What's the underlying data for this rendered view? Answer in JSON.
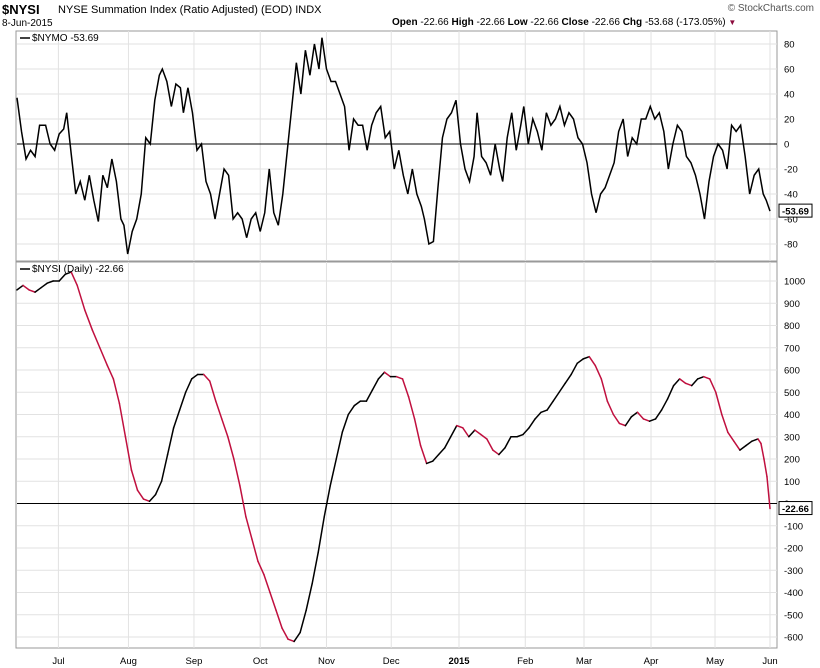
{
  "header": {
    "symbol": "$NYSI",
    "title": "NYSE Summation Index (Ratio Adjusted) (EOD)",
    "exchange": "INDX",
    "date": "8-Jun-2015",
    "open_label": "Open",
    "open_value": "-22.66",
    "high_label": "High",
    "high_value": "-22.66",
    "low_label": "Low",
    "low_value": "-22.66",
    "close_label": "Close",
    "close_value": "-22.66",
    "chg_label": "Chg",
    "chg_value": "-53.68 (-173.05%)",
    "watermark": "© StockCharts.com"
  },
  "colors": {
    "up": "#000000",
    "down": "#c0103f",
    "zero_line": "#000000",
    "grid": "#e2e2e2",
    "chg_arrow": "#8b0a3c"
  },
  "chart_data": [
    {
      "type": "line",
      "legend": "$NYMO -53.69",
      "series_name": "$NYMO",
      "last_value": -53.69,
      "last_label": "-53.69",
      "y_range": [
        -90,
        90
      ],
      "y_ticks": [
        80,
        60,
        40,
        20,
        0,
        -20,
        -40,
        -60,
        -80
      ],
      "zero_line": 0,
      "x_ticks": [
        {
          "label": "Jul",
          "t": 0.055
        },
        {
          "label": "Aug",
          "t": 0.148
        },
        {
          "label": "Sep",
          "t": 0.235
        },
        {
          "label": "Oct",
          "t": 0.323
        },
        {
          "label": "Nov",
          "t": 0.411
        },
        {
          "label": "Dec",
          "t": 0.497
        },
        {
          "label": "2015",
          "t": 0.587
        },
        {
          "label": "Feb",
          "t": 0.675
        },
        {
          "label": "Mar",
          "t": 0.753
        },
        {
          "label": "Apr",
          "t": 0.842
        },
        {
          "label": "May",
          "t": 0.927
        },
        {
          "label": "Jun",
          "t": 1.0
        }
      ],
      "points": [
        [
          0.0,
          37
        ],
        [
          0.006,
          10
        ],
        [
          0.012,
          -12
        ],
        [
          0.018,
          -5
        ],
        [
          0.024,
          -10
        ],
        [
          0.03,
          15
        ],
        [
          0.038,
          15
        ],
        [
          0.044,
          0
        ],
        [
          0.05,
          -5
        ],
        [
          0.056,
          8
        ],
        [
          0.062,
          12
        ],
        [
          0.066,
          25
        ],
        [
          0.072,
          -8
        ],
        [
          0.078,
          -40
        ],
        [
          0.084,
          -30
        ],
        [
          0.09,
          -45
        ],
        [
          0.096,
          -25
        ],
        [
          0.102,
          -45
        ],
        [
          0.108,
          -62
        ],
        [
          0.114,
          -25
        ],
        [
          0.12,
          -35
        ],
        [
          0.126,
          -12
        ],
        [
          0.132,
          -30
        ],
        [
          0.138,
          -60
        ],
        [
          0.142,
          -65
        ],
        [
          0.147,
          -88
        ],
        [
          0.153,
          -70
        ],
        [
          0.159,
          -60
        ],
        [
          0.165,
          -40
        ],
        [
          0.171,
          5
        ],
        [
          0.177,
          0
        ],
        [
          0.183,
          35
        ],
        [
          0.189,
          55
        ],
        [
          0.193,
          60
        ],
        [
          0.199,
          50
        ],
        [
          0.205,
          30
        ],
        [
          0.211,
          48
        ],
        [
          0.217,
          45
        ],
        [
          0.221,
          25
        ],
        [
          0.227,
          45
        ],
        [
          0.233,
          25
        ],
        [
          0.239,
          -5
        ],
        [
          0.245,
          0
        ],
        [
          0.251,
          -30
        ],
        [
          0.257,
          -40
        ],
        [
          0.263,
          -60
        ],
        [
          0.269,
          -40
        ],
        [
          0.275,
          -20
        ],
        [
          0.281,
          -25
        ],
        [
          0.287,
          -60
        ],
        [
          0.293,
          -55
        ],
        [
          0.299,
          -60
        ],
        [
          0.305,
          -75
        ],
        [
          0.311,
          -60
        ],
        [
          0.317,
          -55
        ],
        [
          0.323,
          -70
        ],
        [
          0.329,
          -55
        ],
        [
          0.335,
          -20
        ],
        [
          0.341,
          -55
        ],
        [
          0.347,
          -65
        ],
        [
          0.353,
          -40
        ],
        [
          0.359,
          -5
        ],
        [
          0.365,
          30
        ],
        [
          0.371,
          65
        ],
        [
          0.377,
          40
        ],
        [
          0.383,
          75
        ],
        [
          0.389,
          55
        ],
        [
          0.395,
          80
        ],
        [
          0.401,
          60
        ],
        [
          0.405,
          85
        ],
        [
          0.411,
          60
        ],
        [
          0.417,
          50
        ],
        [
          0.423,
          50
        ],
        [
          0.429,
          40
        ],
        [
          0.435,
          30
        ],
        [
          0.441,
          -5
        ],
        [
          0.447,
          20
        ],
        [
          0.453,
          15
        ],
        [
          0.459,
          15
        ],
        [
          0.465,
          -5
        ],
        [
          0.471,
          15
        ],
        [
          0.477,
          25
        ],
        [
          0.483,
          30
        ],
        [
          0.489,
          5
        ],
        [
          0.495,
          10
        ],
        [
          0.501,
          -20
        ],
        [
          0.507,
          -5
        ],
        [
          0.513,
          -25
        ],
        [
          0.519,
          -40
        ],
        [
          0.525,
          -20
        ],
        [
          0.531,
          -40
        ],
        [
          0.537,
          -50
        ],
        [
          0.541,
          -60
        ],
        [
          0.547,
          -80
        ],
        [
          0.553,
          -78
        ],
        [
          0.559,
          -35
        ],
        [
          0.565,
          5
        ],
        [
          0.571,
          20
        ],
        [
          0.577,
          25
        ],
        [
          0.583,
          35
        ],
        [
          0.589,
          0
        ],
        [
          0.595,
          -20
        ],
        [
          0.601,
          -30
        ],
        [
          0.607,
          -10
        ],
        [
          0.611,
          25
        ],
        [
          0.617,
          -10
        ],
        [
          0.623,
          -15
        ],
        [
          0.629,
          -25
        ],
        [
          0.635,
          0
        ],
        [
          0.641,
          -20
        ],
        [
          0.645,
          -30
        ],
        [
          0.651,
          5
        ],
        [
          0.657,
          25
        ],
        [
          0.663,
          -5
        ],
        [
          0.669,
          15
        ],
        [
          0.673,
          30
        ],
        [
          0.679,
          0
        ],
        [
          0.685,
          20
        ],
        [
          0.691,
          10
        ],
        [
          0.697,
          -5
        ],
        [
          0.703,
          25
        ],
        [
          0.709,
          15
        ],
        [
          0.715,
          20
        ],
        [
          0.721,
          30
        ],
        [
          0.727,
          15
        ],
        [
          0.733,
          25
        ],
        [
          0.739,
          20
        ],
        [
          0.745,
          5
        ],
        [
          0.751,
          0
        ],
        [
          0.757,
          -15
        ],
        [
          0.763,
          -40
        ],
        [
          0.769,
          -55
        ],
        [
          0.775,
          -40
        ],
        [
          0.781,
          -35
        ],
        [
          0.787,
          -25
        ],
        [
          0.793,
          -15
        ],
        [
          0.799,
          10
        ],
        [
          0.805,
          20
        ],
        [
          0.811,
          -10
        ],
        [
          0.817,
          5
        ],
        [
          0.823,
          0
        ],
        [
          0.829,
          20
        ],
        [
          0.835,
          20
        ],
        [
          0.841,
          30
        ],
        [
          0.847,
          20
        ],
        [
          0.853,
          25
        ],
        [
          0.859,
          10
        ],
        [
          0.865,
          -20
        ],
        [
          0.871,
          0
        ],
        [
          0.877,
          15
        ],
        [
          0.883,
          10
        ],
        [
          0.889,
          -10
        ],
        [
          0.895,
          -15
        ],
        [
          0.901,
          -25
        ],
        [
          0.907,
          -40
        ],
        [
          0.913,
          -60
        ],
        [
          0.919,
          -30
        ],
        [
          0.925,
          -10
        ],
        [
          0.931,
          0
        ],
        [
          0.937,
          -5
        ],
        [
          0.943,
          -20
        ],
        [
          0.949,
          15
        ],
        [
          0.955,
          10
        ],
        [
          0.961,
          15
        ],
        [
          0.967,
          -10
        ],
        [
          0.973,
          -40
        ],
        [
          0.979,
          -25
        ],
        [
          0.985,
          -20
        ],
        [
          0.991,
          -40
        ],
        [
          0.995,
          -45
        ],
        [
          1.0,
          -53.69
        ]
      ]
    },
    {
      "type": "line",
      "legend": "$NYSI (Daily) -22.66",
      "series_name": "$NYSI (Daily)",
      "last_value": -22.66,
      "last_label": "-22.66",
      "y_range": [
        -650,
        1050
      ],
      "y_ticks": [
        1000,
        900,
        800,
        700,
        600,
        500,
        400,
        300,
        200,
        100,
        0,
        -100,
        -200,
        -300,
        -400,
        -500,
        -600
      ],
      "zero_line": 0,
      "color_rule": "black when rising, red when falling",
      "points": [
        [
          0.0,
          960
        ],
        [
          0.008,
          980
        ],
        [
          0.016,
          960
        ],
        [
          0.024,
          950
        ],
        [
          0.032,
          970
        ],
        [
          0.04,
          990
        ],
        [
          0.048,
          1000
        ],
        [
          0.056,
          1000
        ],
        [
          0.064,
          1030
        ],
        [
          0.072,
          1040
        ],
        [
          0.08,
          980
        ],
        [
          0.09,
          870
        ],
        [
          0.1,
          780
        ],
        [
          0.11,
          700
        ],
        [
          0.12,
          620
        ],
        [
          0.128,
          560
        ],
        [
          0.136,
          450
        ],
        [
          0.144,
          300
        ],
        [
          0.152,
          150
        ],
        [
          0.16,
          60
        ],
        [
          0.168,
          20
        ],
        [
          0.176,
          10
        ],
        [
          0.184,
          40
        ],
        [
          0.192,
          100
        ],
        [
          0.2,
          220
        ],
        [
          0.208,
          340
        ],
        [
          0.216,
          420
        ],
        [
          0.224,
          500
        ],
        [
          0.232,
          560
        ],
        [
          0.24,
          580
        ],
        [
          0.248,
          580
        ],
        [
          0.256,
          550
        ],
        [
          0.264,
          460
        ],
        [
          0.272,
          380
        ],
        [
          0.28,
          300
        ],
        [
          0.288,
          200
        ],
        [
          0.296,
          80
        ],
        [
          0.304,
          -60
        ],
        [
          0.312,
          -160
        ],
        [
          0.32,
          -260
        ],
        [
          0.328,
          -320
        ],
        [
          0.336,
          -400
        ],
        [
          0.344,
          -480
        ],
        [
          0.352,
          -560
        ],
        [
          0.36,
          -610
        ],
        [
          0.368,
          -620
        ],
        [
          0.376,
          -580
        ],
        [
          0.384,
          -480
        ],
        [
          0.392,
          -360
        ],
        [
          0.4,
          -220
        ],
        [
          0.408,
          -60
        ],
        [
          0.416,
          80
        ],
        [
          0.424,
          200
        ],
        [
          0.432,
          320
        ],
        [
          0.44,
          400
        ],
        [
          0.448,
          440
        ],
        [
          0.456,
          460
        ],
        [
          0.464,
          460
        ],
        [
          0.472,
          510
        ],
        [
          0.48,
          560
        ],
        [
          0.488,
          590
        ],
        [
          0.496,
          570
        ],
        [
          0.504,
          570
        ],
        [
          0.512,
          560
        ],
        [
          0.52,
          480
        ],
        [
          0.528,
          380
        ],
        [
          0.536,
          260
        ],
        [
          0.544,
          180
        ],
        [
          0.552,
          190
        ],
        [
          0.56,
          220
        ],
        [
          0.568,
          250
        ],
        [
          0.576,
          300
        ],
        [
          0.584,
          350
        ],
        [
          0.592,
          340
        ],
        [
          0.6,
          300
        ],
        [
          0.608,
          330
        ],
        [
          0.616,
          310
        ],
        [
          0.624,
          290
        ],
        [
          0.632,
          240
        ],
        [
          0.64,
          220
        ],
        [
          0.648,
          250
        ],
        [
          0.656,
          300
        ],
        [
          0.664,
          300
        ],
        [
          0.672,
          310
        ],
        [
          0.68,
          340
        ],
        [
          0.688,
          380
        ],
        [
          0.696,
          410
        ],
        [
          0.704,
          420
        ],
        [
          0.712,
          460
        ],
        [
          0.72,
          500
        ],
        [
          0.728,
          540
        ],
        [
          0.736,
          580
        ],
        [
          0.744,
          630
        ],
        [
          0.752,
          650
        ],
        [
          0.76,
          660
        ],
        [
          0.768,
          620
        ],
        [
          0.776,
          560
        ],
        [
          0.784,
          460
        ],
        [
          0.792,
          400
        ],
        [
          0.8,
          360
        ],
        [
          0.808,
          350
        ],
        [
          0.816,
          390
        ],
        [
          0.824,
          410
        ],
        [
          0.832,
          380
        ],
        [
          0.84,
          370
        ],
        [
          0.848,
          380
        ],
        [
          0.856,
          420
        ],
        [
          0.864,
          470
        ],
        [
          0.872,
          530
        ],
        [
          0.88,
          560
        ],
        [
          0.888,
          540
        ],
        [
          0.896,
          530
        ],
        [
          0.904,
          560
        ],
        [
          0.912,
          570
        ],
        [
          0.92,
          560
        ],
        [
          0.928,
          500
        ],
        [
          0.936,
          400
        ],
        [
          0.944,
          320
        ],
        [
          0.952,
          280
        ],
        [
          0.96,
          240
        ],
        [
          0.968,
          260
        ],
        [
          0.976,
          280
        ],
        [
          0.984,
          290
        ],
        [
          0.988,
          270
        ],
        [
          0.992,
          200
        ],
        [
          0.996,
          120
        ],
        [
          1.0,
          -22.66
        ]
      ]
    }
  ]
}
